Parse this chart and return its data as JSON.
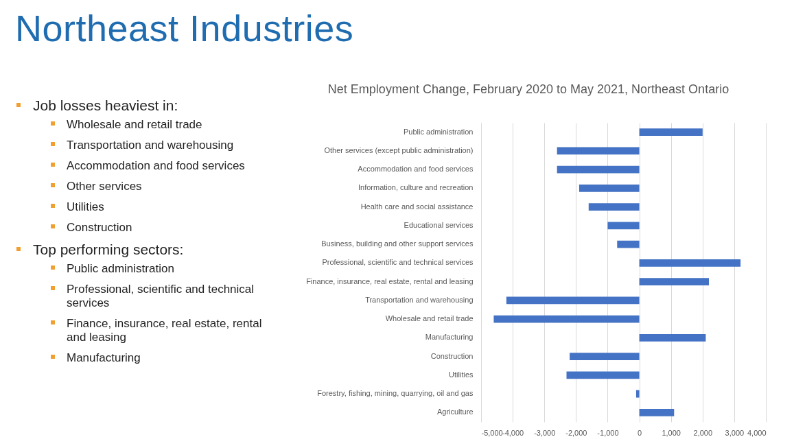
{
  "chart_data": [
    {
      "type": "other",
      "title": "Northeast Industries",
      "annotations": [
        "Job losses heaviest in:",
        "Wholesale and retail trade",
        "Transportation and warehousing",
        "Accommodation and food services",
        "Other services",
        "Utilities",
        "Construction",
        "Top performing sectors:",
        "Public administration",
        "Professional, scientific and technical services",
        "Finance, insurance, real estate, rental and leasing",
        "Manufacturing"
      ]
    },
    {
      "type": "bar",
      "orientation": "horizontal",
      "title": "Net Employment Change, February 2020 to May 2021, Northeast Ontario",
      "categories": [
        "Public administration",
        "Other services (except public administration)",
        "Accommodation and food services",
        "Information, culture and recreation",
        "Health care and social assistance",
        "Educational services",
        "Business, building and other support services",
        "Professional, scientific and technical services",
        "Finance, insurance, real estate, rental and leasing",
        "Transportation and warehousing",
        "Wholesale and retail trade",
        "Manufacturing",
        "Construction",
        "Utilities",
        "Forestry, fishing, mining, quarrying, oil and gas",
        "Agriculture"
      ],
      "values": [
        2000,
        -2600,
        -2600,
        -1900,
        -1600,
        -1000,
        -700,
        3200,
        2200,
        -4200,
        -4600,
        2100,
        -2200,
        -2300,
        -100,
        1100
      ],
      "color": "#4472c4",
      "xlim": [
        -5000,
        4000
      ],
      "xticks": [
        {
          "value": -5000,
          "label": "-5,000"
        },
        {
          "value": -4000,
          "label": "-4,000"
        },
        {
          "value": -3000,
          "label": "-3,000"
        },
        {
          "value": -2000,
          "label": "-2,000"
        },
        {
          "value": -1000,
          "label": "-1,000"
        },
        0,
        {
          "value": 1000,
          "label": "1,000"
        },
        {
          "value": 2000,
          "label": "2,000"
        },
        {
          "value": 3000,
          "label": "3,000"
        },
        {
          "value": 4000,
          "label": "4,000"
        }
      ],
      "grid": "x"
    }
  ]
}
